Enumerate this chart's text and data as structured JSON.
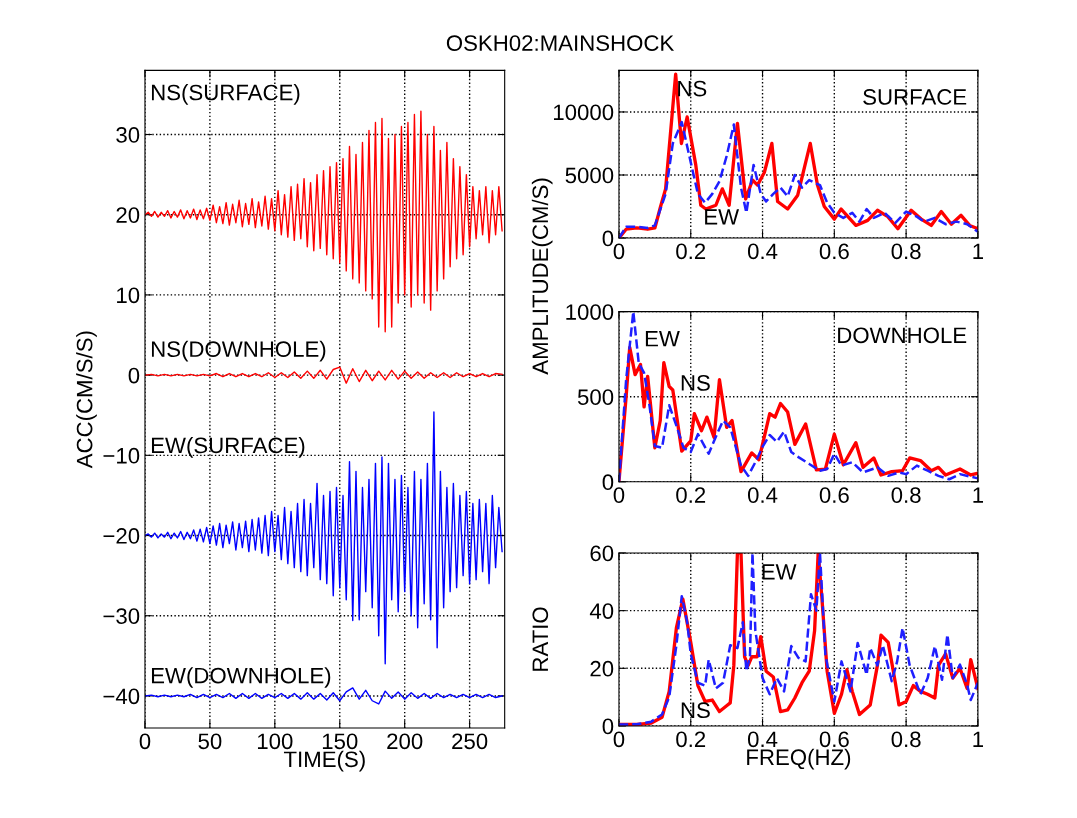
{
  "chart_data": [
    {
      "type": "line",
      "title": "OSKH02:MAINSHOCK",
      "xlabel": "TIME(S)",
      "ylabel": "ACC(CM/S/S)",
      "xlim": [
        0,
        277
      ],
      "xticks": [
        0,
        50,
        100,
        150,
        200,
        250
      ],
      "ylim": [
        -44,
        38
      ],
      "yticks": [
        {
          "value": -40,
          "label": "−40"
        },
        {
          "value": -30,
          "label": "−30"
        },
        {
          "value": -20,
          "label": "−20"
        },
        {
          "value": -10,
          "label": "−10"
        },
        0,
        10,
        20,
        30
      ],
      "grid": true,
      "legend": false,
      "marker": "none",
      "series": [
        {
          "name": "NS(SURFACE)",
          "color": "#ff0000",
          "line_style": "solid",
          "x": [
            0,
            2.5,
            5,
            7.5,
            10,
            12.5,
            15,
            17.5,
            20,
            22.5,
            25,
            27.5,
            30,
            32.5,
            35,
            37.5,
            40,
            42.5,
            45,
            47.5,
            50,
            52.5,
            55,
            57.5,
            60,
            62.5,
            65,
            67.5,
            70,
            72.5,
            75,
            77.5,
            80,
            82.5,
            85,
            87.5,
            90,
            92.5,
            95,
            97.5,
            100,
            102.5,
            105,
            107.5,
            110,
            112.5,
            115,
            117.5,
            120,
            122.5,
            125,
            127.5,
            130,
            132.5,
            135,
            137.5,
            140,
            142.5,
            145,
            147.5,
            150,
            152.5,
            155,
            157.5,
            160,
            162.5,
            165,
            167.5,
            170,
            172.5,
            175,
            177.5,
            180,
            182.5,
            185,
            187.5,
            190,
            192.5,
            195,
            197.5,
            200,
            202.5,
            205,
            207.5,
            210,
            212.5,
            215,
            217.5,
            220,
            222.5,
            225,
            227.5,
            230,
            232.5,
            235,
            237.5,
            240,
            242.5,
            245,
            247.5,
            250,
            252.5,
            255,
            257.5,
            260,
            262.5,
            265,
            267.5,
            270,
            272.5,
            275
          ],
          "values": [
            20,
            20.3,
            19.8,
            20.4,
            19.7,
            20.3,
            19.8,
            20.5,
            19.6,
            20.4,
            19.7,
            20.6,
            19.5,
            20.5,
            19.6,
            20.7,
            19.4,
            20.6,
            19.5,
            20.8,
            19.3,
            21.2,
            19.0,
            21.0,
            18.9,
            21.5,
            18.7,
            21.3,
            19.0,
            21.8,
            18.5,
            21.4,
            18.8,
            22.0,
            18.4,
            21.6,
            18.6,
            22.3,
            18.2,
            22.0,
            18.0,
            23.0,
            17.5,
            22.5,
            17.2,
            23.5,
            16.8,
            23.8,
            17.0,
            24.5,
            16.0,
            24.0,
            15.5,
            25.0,
            15.8,
            25.5,
            15.0,
            26.0,
            14.5,
            26.5,
            14.0,
            27.0,
            13.0,
            28.5,
            12.0,
            27.5,
            11.5,
            29.0,
            10.5,
            30.5,
            9.5,
            31.5,
            6.0,
            32.0,
            5.4,
            29.5,
            6.0,
            30.0,
            9.0,
            31.0,
            10.0,
            31.5,
            8.5,
            32.5,
            10.0,
            32.9,
            9.0,
            30.0,
            8.1,
            31.0,
            10.5,
            28.0,
            12.0,
            29.0,
            13.5,
            27.0,
            14.5,
            26.0,
            15.0,
            25.0,
            16.0,
            23.5,
            17.0,
            23.0,
            17.5,
            23.5,
            16.5,
            23.0,
            17.5,
            23.5,
            18.0
          ]
        },
        {
          "name": "NS(DOWNHOLE)",
          "color": "#ff0000",
          "line_style": "solid",
          "x": [
            0,
            5,
            10,
            15,
            20,
            25,
            30,
            35,
            40,
            45,
            50,
            55,
            60,
            65,
            70,
            75,
            80,
            85,
            90,
            95,
            100,
            105,
            110,
            115,
            120,
            125,
            130,
            135,
            140,
            145,
            150,
            155,
            160,
            165,
            170,
            175,
            180,
            185,
            190,
            195,
            200,
            205,
            210,
            215,
            220,
            225,
            230,
            235,
            240,
            245,
            250,
            255,
            260,
            265,
            270,
            275
          ],
          "values": [
            0,
            0.1,
            -0.1,
            0.1,
            -0.1,
            0.1,
            -0.1,
            0.1,
            -0.1,
            0.1,
            -0.1,
            0.2,
            -0.2,
            0.2,
            -0.2,
            0.2,
            -0.2,
            0.2,
            -0.2,
            0.3,
            -0.3,
            0.3,
            -0.3,
            0.4,
            -0.4,
            0.5,
            -0.4,
            0.6,
            -0.5,
            0.7,
            1.0,
            -1.0,
            0.8,
            -0.8,
            0.6,
            -0.7,
            0.5,
            -0.6,
            0.6,
            -0.5,
            0.5,
            -0.4,
            0.4,
            -0.4,
            0.3,
            -0.3,
            0.3,
            -0.3,
            0.3,
            -0.2,
            0.2,
            -0.2,
            0.2,
            -0.2,
            0.2,
            0.1
          ]
        },
        {
          "name": "EW(SURFACE)",
          "color": "#0000ff",
          "line_style": "solid",
          "x": [
            0,
            2.5,
            5,
            7.5,
            10,
            12.5,
            15,
            17.5,
            20,
            22.5,
            25,
            27.5,
            30,
            32.5,
            35,
            37.5,
            40,
            42.5,
            45,
            47.5,
            50,
            52.5,
            55,
            57.5,
            60,
            62.5,
            65,
            67.5,
            70,
            72.5,
            75,
            77.5,
            80,
            82.5,
            85,
            87.5,
            90,
            92.5,
            95,
            97.5,
            100,
            102.5,
            105,
            107.5,
            110,
            112.5,
            115,
            117.5,
            120,
            122.5,
            125,
            127.5,
            130,
            132.5,
            135,
            137.5,
            140,
            142.5,
            145,
            147.5,
            150,
            152.5,
            155,
            157.5,
            160,
            162.5,
            165,
            167.5,
            170,
            172.5,
            175,
            177.5,
            180,
            182.5,
            185,
            187.5,
            190,
            192.5,
            195,
            197.5,
            200,
            202.5,
            205,
            207.5,
            210,
            212.5,
            215,
            217.5,
            220,
            222.5,
            225,
            227.5,
            230,
            232.5,
            235,
            237.5,
            240,
            242.5,
            245,
            247.5,
            250,
            252.5,
            255,
            257.5,
            260,
            262.5,
            265,
            267.5,
            270,
            272.5,
            275
          ],
          "values": [
            -20,
            -19.8,
            -20.2,
            -19.7,
            -20.3,
            -19.8,
            -20.2,
            -19.6,
            -20.4,
            -19.7,
            -20.3,
            -19.5,
            -20.5,
            -19.6,
            -20.4,
            -19.3,
            -20.7,
            -19.2,
            -20.8,
            -19.0,
            -21.0,
            -18.8,
            -21.2,
            -18.5,
            -21.5,
            -18.7,
            -21.0,
            -18.3,
            -21.8,
            -18.5,
            -21.5,
            -18.2,
            -22.0,
            -18.0,
            -21.8,
            -17.8,
            -22.2,
            -17.5,
            -22.5,
            -17.0,
            -22.0,
            -17.5,
            -23.0,
            -16.5,
            -23.5,
            -17.0,
            -24.0,
            -16.0,
            -24.5,
            -15.5,
            -25.0,
            -16.0,
            -24.0,
            -13.5,
            -25.5,
            -15.0,
            -26.0,
            -14.5,
            -27.5,
            -14.0,
            -26.5,
            -15.0,
            -28.0,
            -10.8,
            -30.6,
            -12.0,
            -30.5,
            -14.0,
            -27.0,
            -13.0,
            -29.0,
            -11.0,
            -32.5,
            -10.2,
            -36.0,
            -11.0,
            -28.0,
            -13.0,
            -29.5,
            -12.5,
            -27.0,
            -14.0,
            -30.0,
            -12.0,
            -31.5,
            -13.0,
            -28.5,
            -11.0,
            -30.5,
            -4.6,
            -34.0,
            -12.0,
            -29.0,
            -14.0,
            -27.0,
            -13.5,
            -26.5,
            -15.0,
            -25.0,
            -14.5,
            -26.0,
            -16.0,
            -25.5,
            -15.5,
            -24.5,
            -16.0,
            -26.0,
            -15.0,
            -24.0,
            -16.5,
            -22.0
          ]
        },
        {
          "name": "EW(DOWNHOLE)",
          "color": "#0000ff",
          "line_style": "solid",
          "x": [
            0,
            5,
            10,
            15,
            20,
            25,
            30,
            35,
            40,
            45,
            50,
            55,
            60,
            65,
            70,
            75,
            80,
            85,
            90,
            95,
            100,
            105,
            110,
            115,
            120,
            125,
            130,
            135,
            140,
            145,
            150,
            155,
            160,
            165,
            170,
            175,
            180,
            185,
            190,
            195,
            200,
            205,
            210,
            215,
            220,
            225,
            230,
            235,
            240,
            245,
            250,
            255,
            260,
            265,
            270,
            275
          ],
          "values": [
            -40,
            -39.9,
            -40.1,
            -39.9,
            -40.1,
            -39.9,
            -40.1,
            -39.8,
            -40.2,
            -39.8,
            -40.2,
            -39.8,
            -40.2,
            -39.7,
            -40.3,
            -39.7,
            -40.3,
            -39.7,
            -40.3,
            -39.8,
            -40.2,
            -39.7,
            -40.3,
            -39.7,
            -40.4,
            -39.6,
            -40.4,
            -39.7,
            -40.5,
            -39.6,
            -40.6,
            -39.5,
            -39.0,
            -40.4,
            -39.3,
            -40.6,
            -41.0,
            -39.4,
            -40.3,
            -39.5,
            -40.4,
            -39.6,
            -40.3,
            -39.7,
            -40.3,
            -39.7,
            -40.2,
            -39.8,
            -40.2,
            -39.8,
            -40.2,
            -39.8,
            -40.2,
            -39.8,
            -40.2,
            -40.0
          ]
        }
      ]
    },
    {
      "type": "line",
      "annotations": [
        "SURFACE"
      ],
      "xlim": [
        0,
        1
      ],
      "xticks": [
        0,
        0.2,
        0.4,
        0.6,
        0.8,
        1
      ],
      "ylim": [
        0,
        13300
      ],
      "yticks": [
        0,
        5000,
        10000
      ],
      "grid": true,
      "legend": false,
      "marker": "none",
      "series": [
        {
          "name": "NS",
          "color": "#ff0000",
          "line_style": "solid",
          "x": [
            0,
            0.02,
            0.05,
            0.08,
            0.1,
            0.116,
            0.13,
            0.158,
            0.174,
            0.19,
            0.214,
            0.228,
            0.242,
            0.27,
            0.288,
            0.307,
            0.33,
            0.353,
            0.372,
            0.386,
            0.405,
            0.426,
            0.442,
            0.47,
            0.498,
            0.533,
            0.553,
            0.572,
            0.6,
            0.619,
            0.66,
            0.693,
            0.72,
            0.749,
            0.777,
            0.814,
            0.842,
            0.87,
            0.898,
            0.926,
            0.953,
            0.977,
            1
          ],
          "values": [
            0,
            700,
            800,
            700,
            800,
            2500,
            3900,
            13000,
            7500,
            9600,
            5800,
            2600,
            2300,
            2600,
            3900,
            2600,
            9100,
            3100,
            4600,
            4200,
            5200,
            7500,
            2900,
            2300,
            3400,
            7500,
            4200,
            2500,
            1500,
            2300,
            1000,
            1400,
            2200,
            1700,
            740,
            2200,
            1500,
            1000,
            2100,
            1100,
            1800,
            1000,
            740
          ]
        },
        {
          "name": "EW",
          "color": "#1f1fff",
          "line_style": "dashed",
          "x": [
            0,
            0.02,
            0.05,
            0.08,
            0.1,
            0.13,
            0.15,
            0.175,
            0.2,
            0.22,
            0.24,
            0.26,
            0.28,
            0.3,
            0.32,
            0.34,
            0.355,
            0.375,
            0.395,
            0.41,
            0.43,
            0.45,
            0.47,
            0.49,
            0.51,
            0.53,
            0.56,
            0.58,
            0.6,
            0.625,
            0.65,
            0.67,
            0.69,
            0.71,
            0.74,
            0.77,
            0.8,
            0.83,
            0.85,
            0.88,
            0.91,
            0.94,
            0.97,
            1
          ],
          "values": [
            0,
            900,
            900,
            800,
            1000,
            3500,
            7500,
            9200,
            6000,
            3500,
            2800,
            3500,
            4500,
            6500,
            9000,
            4000,
            2000,
            5800,
            3500,
            2900,
            3500,
            4000,
            3300,
            5000,
            4000,
            4600,
            4200,
            2800,
            2000,
            1600,
            2000,
            1300,
            2300,
            1600,
            2000,
            1200,
            2100,
            1700,
            1300,
            1600,
            1100,
            1300,
            1100,
            500
          ]
        }
      ]
    },
    {
      "type": "line",
      "ylabel": "AMPLITUDE(CM/S)",
      "annotations": [
        "DOWNHOLE"
      ],
      "xlim": [
        0,
        1
      ],
      "xticks": [
        0,
        0.2,
        0.4,
        0.6,
        0.8,
        1
      ],
      "ylim": [
        0,
        1000
      ],
      "yticks": [
        0,
        500,
        1000
      ],
      "grid": true,
      "legend": false,
      "marker": "none",
      "series": [
        {
          "name": "NS",
          "color": "#ff0000",
          "line_style": "solid",
          "x": [
            0,
            0.02,
            0.03,
            0.045,
            0.06,
            0.07,
            0.08,
            0.1,
            0.115,
            0.125,
            0.14,
            0.15,
            0.175,
            0.2,
            0.21,
            0.23,
            0.245,
            0.265,
            0.28,
            0.3,
            0.315,
            0.34,
            0.37,
            0.39,
            0.42,
            0.435,
            0.45,
            0.47,
            0.49,
            0.52,
            0.55,
            0.575,
            0.6,
            0.625,
            0.66,
            0.68,
            0.71,
            0.73,
            0.76,
            0.79,
            0.81,
            0.84,
            0.87,
            0.89,
            0.91,
            0.95,
            0.98,
            1
          ],
          "values": [
            0,
            500,
            790,
            630,
            690,
            440,
            620,
            200,
            360,
            700,
            560,
            540,
            180,
            240,
            400,
            300,
            380,
            260,
            600,
            320,
            360,
            60,
            170,
            130,
            400,
            380,
            460,
            410,
            220,
            340,
            70,
            75,
            280,
            100,
            230,
            85,
            140,
            40,
            60,
            65,
            140,
            125,
            65,
            85,
            40,
            75,
            40,
            50
          ]
        },
        {
          "name": "EW",
          "color": "#1f1fff",
          "line_style": "dashed",
          "x": [
            0,
            0.02,
            0.04,
            0.055,
            0.07,
            0.085,
            0.1,
            0.12,
            0.14,
            0.16,
            0.18,
            0.2,
            0.22,
            0.25,
            0.27,
            0.29,
            0.31,
            0.34,
            0.36,
            0.38,
            0.4,
            0.42,
            0.44,
            0.46,
            0.48,
            0.5,
            0.53,
            0.56,
            0.58,
            0.6,
            0.62,
            0.65,
            0.68,
            0.72,
            0.75,
            0.78,
            0.8,
            0.83,
            0.86,
            0.89,
            0.92,
            0.95,
            1
          ],
          "values": [
            0,
            600,
            1000,
            700,
            640,
            450,
            210,
            200,
            450,
            330,
            200,
            175,
            280,
            165,
            265,
            360,
            320,
            95,
            35,
            115,
            205,
            275,
            235,
            295,
            175,
            145,
            105,
            65,
            75,
            165,
            95,
            115,
            55,
            85,
            35,
            55,
            45,
            95,
            65,
            35,
            15,
            45,
            20
          ]
        }
      ]
    },
    {
      "type": "line",
      "xlabel": "FREQ(HZ)",
      "ylabel": "RATIO",
      "xlim": [
        0,
        1
      ],
      "xticks": [
        0,
        0.2,
        0.4,
        0.6,
        0.8,
        1
      ],
      "ylim": [
        0,
        60
      ],
      "yticks": [
        0,
        20,
        40,
        60
      ],
      "grid": true,
      "legend": false,
      "marker": "none",
      "series": [
        {
          "name": "NS",
          "color": "#ff0000",
          "line_style": "solid",
          "x": [
            0,
            0.05,
            0.09,
            0.12,
            0.14,
            0.16,
            0.178,
            0.2,
            0.22,
            0.24,
            0.26,
            0.28,
            0.3,
            0.31,
            0.32,
            0.33,
            0.34,
            0.35,
            0.36,
            0.37,
            0.385,
            0.395,
            0.41,
            0.43,
            0.45,
            0.47,
            0.49,
            0.51,
            0.53,
            0.545,
            0.555,
            0.565,
            0.58,
            0.6,
            0.62,
            0.635,
            0.65,
            0.67,
            0.7,
            0.72,
            0.73,
            0.75,
            0.77,
            0.78,
            0.8,
            0.82,
            0.84,
            0.86,
            0.88,
            0.89,
            0.91,
            0.93,
            0.95,
            0.97,
            0.98,
            1
          ],
          "values": [
            0.5,
            0.5,
            1,
            3,
            12,
            34,
            44,
            29,
            14,
            8.5,
            9,
            5,
            7,
            8,
            21,
            60,
            60,
            24,
            21,
            24,
            24,
            31,
            19,
            17,
            5,
            5.6,
            9.7,
            15,
            19,
            33,
            60,
            45,
            19,
            4.4,
            11,
            19.5,
            12,
            4,
            7.3,
            21,
            31.5,
            29,
            15,
            7.3,
            8.5,
            14,
            12,
            11,
            9.7,
            21,
            25,
            16.6,
            20,
            13,
            23,
            13
          ]
        },
        {
          "name": "EW",
          "color": "#1f1fff",
          "line_style": "dashed",
          "x": [
            0,
            0.05,
            0.09,
            0.12,
            0.14,
            0.16,
            0.175,
            0.19,
            0.2,
            0.22,
            0.24,
            0.25,
            0.27,
            0.29,
            0.31,
            0.33,
            0.345,
            0.355,
            0.365,
            0.372,
            0.38,
            0.4,
            0.42,
            0.44,
            0.46,
            0.48,
            0.5,
            0.52,
            0.535,
            0.55,
            0.56,
            0.575,
            0.6,
            0.62,
            0.645,
            0.665,
            0.69,
            0.7,
            0.72,
            0.735,
            0.76,
            0.775,
            0.79,
            0.81,
            0.84,
            0.86,
            0.88,
            0.9,
            0.915,
            0.93,
            0.95,
            0.97,
            0.98,
            1
          ],
          "values": [
            0.5,
            0.6,
            1.5,
            4,
            10,
            28,
            45,
            36,
            25,
            15,
            14,
            23,
            13,
            15,
            28,
            27,
            36,
            19,
            24,
            60,
            33,
            16.6,
            11,
            16.6,
            12,
            27.7,
            23.6,
            22.4,
            45.7,
            40,
            60,
            24.8,
            8.5,
            22.4,
            12,
            28.8,
            17.8,
            27,
            21,
            28,
            15.5,
            22.4,
            34,
            21,
            11,
            16.6,
            27.7,
            16,
            31.7,
            16.6,
            21.3,
            14.3,
            9,
            15
          ]
        }
      ]
    }
  ]
}
